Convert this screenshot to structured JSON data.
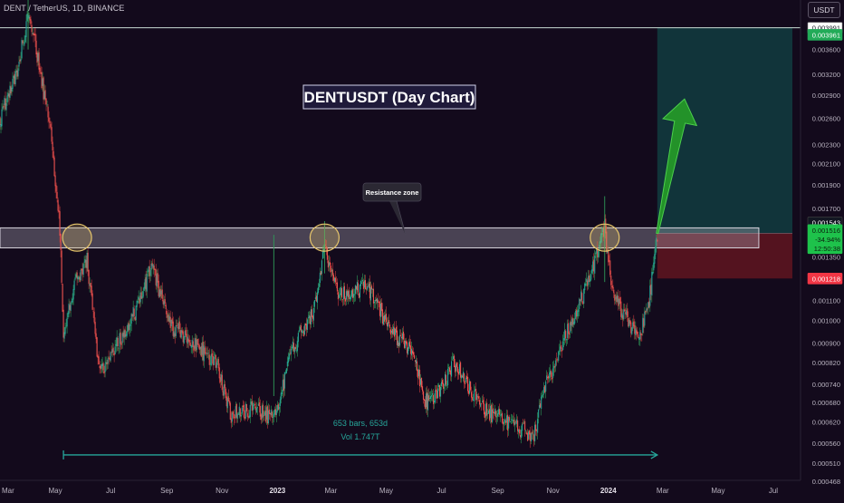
{
  "header": {
    "symbol_line": "DENT / TetherUS, 1D, BINANCE",
    "currency": "USDT"
  },
  "chart_data": {
    "type": "candlestick",
    "title": "DENTUSDT (Day Chart)",
    "interval": "1D",
    "exchange": "BINANCE",
    "y_scale": "log",
    "ylim": [
      0.00047,
      0.00455
    ],
    "x_range": [
      "2022-03-01",
      "2024-07-31"
    ],
    "y_ticks": [
      "0.004400",
      "0.003600",
      "0.003200",
      "0.002900",
      "0.002600",
      "0.002300",
      "0.002100",
      "0.001900",
      "0.001700",
      "0.001350",
      "0.001100",
      "0.001000",
      "0.000900",
      "0.000820",
      "0.000740",
      "0.000680",
      "0.000620",
      "0.000560",
      "0.000510",
      "0.000468"
    ],
    "x_ticks": [
      {
        "label": "Mar",
        "date": "2022-03-01",
        "bold": false
      },
      {
        "label": "May",
        "date": "2022-05-01",
        "bold": false
      },
      {
        "label": "Jul",
        "date": "2022-07-01",
        "bold": false
      },
      {
        "label": "Sep",
        "date": "2022-09-01",
        "bold": false
      },
      {
        "label": "Nov",
        "date": "2022-11-01",
        "bold": false
      },
      {
        "label": "2023",
        "date": "2023-01-01",
        "bold": true
      },
      {
        "label": "Mar",
        "date": "2023-03-01",
        "bold": false
      },
      {
        "label": "May",
        "date": "2023-05-01",
        "bold": false
      },
      {
        "label": "Jul",
        "date": "2023-07-01",
        "bold": false
      },
      {
        "label": "Sep",
        "date": "2023-09-01",
        "bold": false
      },
      {
        "label": "Nov",
        "date": "2023-11-01",
        "bold": false
      },
      {
        "label": "2024",
        "date": "2024-01-01",
        "bold": true
      },
      {
        "label": "Mar",
        "date": "2024-03-01",
        "bold": false
      },
      {
        "label": "May",
        "date": "2024-05-01",
        "bold": false
      },
      {
        "label": "Jul",
        "date": "2024-07-01",
        "bold": false
      }
    ],
    "price_path": [
      [
        "2022-03-01",
        0.0026
      ],
      [
        "2022-03-20",
        0.0033
      ],
      [
        "2022-04-01",
        0.0042
      ],
      [
        "2022-04-10",
        0.0036
      ],
      [
        "2022-04-25",
        0.0025
      ],
      [
        "2022-05-06",
        0.00155
      ],
      [
        "2022-05-10",
        0.0009
      ],
      [
        "2022-05-20",
        0.00115
      ],
      [
        "2022-06-05",
        0.00135
      ],
      [
        "2022-06-18",
        0.00078
      ],
      [
        "2022-07-10",
        0.0009
      ],
      [
        "2022-08-01",
        0.00108
      ],
      [
        "2022-08-15",
        0.0013
      ],
      [
        "2022-09-05",
        0.00098
      ],
      [
        "2022-10-01",
        0.0009
      ],
      [
        "2022-10-25",
        0.00082
      ],
      [
        "2022-11-10",
        0.00064
      ],
      [
        "2022-12-05",
        0.00066
      ],
      [
        "2022-12-30",
        0.00063
      ],
      [
        "2023-01-15",
        0.00085
      ],
      [
        "2023-02-01",
        0.00098
      ],
      [
        "2023-02-14",
        0.0011
      ],
      [
        "2023-02-22",
        0.00142
      ],
      [
        "2023-03-10",
        0.00112
      ],
      [
        "2023-04-10",
        0.00118
      ],
      [
        "2023-05-05",
        0.00096
      ],
      [
        "2023-06-01",
        0.00086
      ],
      [
        "2023-06-12",
        0.00068
      ],
      [
        "2023-07-01",
        0.00072
      ],
      [
        "2023-07-15",
        0.00082
      ],
      [
        "2023-08-15",
        0.00066
      ],
      [
        "2023-09-10",
        0.00062
      ],
      [
        "2023-10-10",
        0.00058
      ],
      [
        "2023-10-25",
        0.00074
      ],
      [
        "2023-11-20",
        0.00098
      ],
      [
        "2023-12-10",
        0.0012
      ],
      [
        "2023-12-28",
        0.00155
      ],
      [
        "2024-01-05",
        0.00115
      ],
      [
        "2024-01-25",
        0.00098
      ],
      [
        "2024-02-05",
        0.00094
      ],
      [
        "2024-02-15",
        0.0011
      ],
      [
        "2024-02-24",
        0.00151
      ]
    ],
    "drawings": {
      "resistance_zone": {
        "label": "Resistance zone",
        "top": 0.00155,
        "bottom": 0.00141,
        "from": "2022-03-01",
        "to": "2024-06-15"
      },
      "long_position": {
        "from": "2024-02-24",
        "to": "2024-07-22",
        "entry": 0.00151,
        "target": 0.00399,
        "stop": 0.00122,
        "target_label": "0.003991",
        "stop_label": "0.001218"
      },
      "horizontal_line": {
        "price": 0.00399
      },
      "circles": [
        {
          "date": "2022-05-25",
          "price": 0.00148
        },
        {
          "date": "2023-02-22",
          "price": 0.00148
        },
        {
          "date": "2023-12-28",
          "price": 0.00148
        }
      ],
      "measure": {
        "from": "2022-05-10",
        "to": "2024-02-24",
        "price": 0.00053,
        "line1": "653 bars, 653d",
        "line2": "Vol 1.747T"
      },
      "arrow": {
        "from_date": "2024-02-24",
        "from_price": 0.00151,
        "to_date": "2024-03-25",
        "to_price": 0.00285
      }
    },
    "price_labels": [
      {
        "text": "0.003991",
        "price": 0.00399,
        "bg": "#ffffff",
        "fg": "#131722",
        "border": "#888888"
      },
      {
        "text": "0.003961",
        "price": 0.00386,
        "bg": "#22ab58",
        "fg": "#ffffff",
        "border": "#22ab58"
      },
      {
        "text": "0.001543",
        "price": 0.00159,
        "bg": "#131722",
        "fg": "#ffffff",
        "border": "#444444"
      },
      {
        "lines": [
          "0.001516",
          "-34.94%",
          "12:50:38"
        ],
        "price": 0.00147,
        "bg": "#1ec24b",
        "fg": "#0b1f0e",
        "border": "#1ec24b"
      },
      {
        "text": "0.001218",
        "price": 0.00122,
        "bg": "#f23645",
        "fg": "#ffffff",
        "border": "#f23645"
      }
    ],
    "colors": {
      "up": "#26a69a",
      "down": "#ef5350",
      "wick_up": "#2e9b58",
      "wick_down": "#c43b3b",
      "background": "#130a1c",
      "target_zone": "#123c3f",
      "stop_zone": "#5c1420",
      "arrow": "#27a327",
      "circle": "#e7c66b"
    }
  }
}
